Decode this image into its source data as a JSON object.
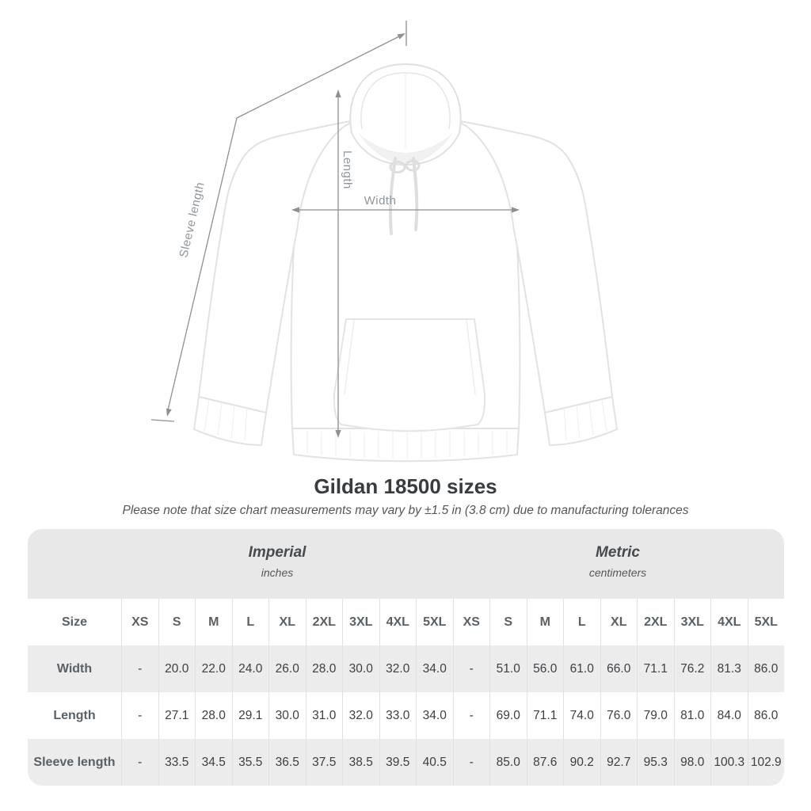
{
  "page": {
    "title": "Gildan 18500 sizes",
    "subtitle": "Please note that size chart measurements may vary by ±1.5 in (3.8 cm) due to manufacturing tolerances"
  },
  "diagram": {
    "labels": {
      "sleeve_length": "Sleeve length",
      "length": "Length",
      "width": "Width"
    },
    "arrow_color": "#8f8f8f",
    "label_color": "#8f969c"
  },
  "table": {
    "header_bg": "#e8e8e8",
    "row_shade": "#ececec",
    "size_header": "Size",
    "unit_groups": [
      {
        "name": "Imperial",
        "unit": "inches"
      },
      {
        "name": "Metric",
        "unit": "centimeters"
      }
    ],
    "sizes": [
      "XS",
      "S",
      "M",
      "L",
      "XL",
      "2XL",
      "3XL",
      "4XL",
      "5XL"
    ],
    "rows": [
      {
        "label": "Width",
        "imperial": [
          "-",
          "20.0",
          "22.0",
          "24.0",
          "26.0",
          "28.0",
          "30.0",
          "32.0",
          "34.0"
        ],
        "metric": [
          "-",
          "51.0",
          "56.0",
          "61.0",
          "66.0",
          "71.1",
          "76.2",
          "81.3",
          "86.0"
        ]
      },
      {
        "label": "Length",
        "imperial": [
          "-",
          "27.1",
          "28.0",
          "29.1",
          "30.0",
          "31.0",
          "32.0",
          "33.0",
          "34.0"
        ],
        "metric": [
          "-",
          "69.0",
          "71.1",
          "74.0",
          "76.0",
          "79.0",
          "81.0",
          "84.0",
          "86.0"
        ]
      },
      {
        "label": "Sleeve length",
        "imperial": [
          "-",
          "33.5",
          "34.5",
          "35.5",
          "36.5",
          "37.5",
          "38.5",
          "39.5",
          "40.5"
        ],
        "metric": [
          "-",
          "85.0",
          "87.6",
          "90.2",
          "92.7",
          "95.3",
          "98.0",
          "100.3",
          "102.9"
        ]
      }
    ]
  }
}
